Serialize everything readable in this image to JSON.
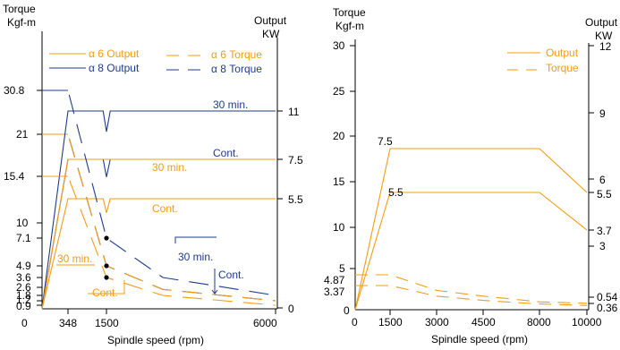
{
  "colors": {
    "orange": "#f39c12",
    "blue": "#1f3b8a",
    "axis": "#000000"
  },
  "chart_data": [
    {
      "type": "line",
      "x_scale": "piecewise",
      "xlabel": "Spindle speed (rpm)",
      "ylabel_left": [
        "Torque",
        "Kgf-m"
      ],
      "ylabel_right": [
        "Output",
        "KW"
      ],
      "x_ticks": [
        "0",
        "348",
        "1500",
        "6000"
      ],
      "y_left_ticks": [
        "30.8",
        "21",
        "15.4",
        "10",
        "7.1",
        "4.9",
        "3.6",
        "2.6",
        "1.8",
        "1.2",
        "0.9"
      ],
      "y_right_ticks": [
        "11",
        "7.5",
        "5.5",
        "0"
      ],
      "legend": {
        "position": "top",
        "entries": [
          {
            "label": "α 6 Output",
            "color": "orange",
            "style": "solid"
          },
          {
            "label": "α 6 Torque",
            "color": "orange",
            "style": "dashed"
          },
          {
            "label": "α 8 Output",
            "color": "blue",
            "style": "solid"
          },
          {
            "label": "α 8 Torque",
            "color": "blue",
            "style": "dashed"
          }
        ]
      },
      "annotations": {
        "blue_output_30min": "30 min.",
        "blue_output_cont": "Cont.",
        "orange_output_30min": "30 min.",
        "orange_output_cont": "Cont.",
        "blue_torque_30min": "30 min.",
        "blue_torque_cont": "Cont.",
        "orange_torque_30min": "30 min.",
        "orange_torque_cont": "Cont."
      },
      "series": [
        {
          "name": "α 8 Output",
          "unit": "KW",
          "duty": "30 min.",
          "color": "blue",
          "style": "solid",
          "points": [
            [
              0,
              0
            ],
            [
              348,
              11
            ],
            [
              1400,
              11
            ],
            [
              1500,
              9.5
            ],
            [
              1600,
              11
            ],
            [
              6000,
              11
            ]
          ]
        },
        {
          "name": "α 8 Output",
          "unit": "KW",
          "duty": "Cont.",
          "color": "blue",
          "style": "solid",
          "points": [
            [
              0,
              0
            ],
            [
              348,
              7.5
            ],
            [
              1400,
              7.5
            ],
            [
              1500,
              6.6
            ],
            [
              1600,
              7.5
            ],
            [
              6000,
              7.5
            ]
          ]
        },
        {
          "name": "α 6 Output",
          "unit": "KW",
          "duty": "30 min.",
          "color": "orange",
          "style": "solid",
          "points": [
            [
              0,
              0
            ],
            [
              348,
              7.5
            ],
            [
              1500,
              7.5
            ],
            [
              6000,
              7.5
            ]
          ]
        },
        {
          "name": "α 6 Output",
          "unit": "KW",
          "duty": "Cont.",
          "color": "orange",
          "style": "solid",
          "points": [
            [
              0,
              0
            ],
            [
              348,
              5.5
            ],
            [
              1400,
              5.5
            ],
            [
              1500,
              4.8
            ],
            [
              1600,
              5.5
            ],
            [
              6000,
              5.5
            ]
          ]
        },
        {
          "name": "α 8 Torque",
          "unit": "Kgf-m",
          "duty": "30 min.",
          "color": "blue",
          "style": "dashed",
          "points": [
            [
              0,
              30.8
            ],
            [
              348,
              30.8
            ],
            [
              1500,
              7.1
            ],
            [
              3000,
              3.6
            ],
            [
              6000,
              1.8
            ]
          ]
        },
        {
          "name": "α 8 Torque",
          "unit": "Kgf-m",
          "duty": "Cont.",
          "color": "blue",
          "style": "dashed",
          "points": [
            [
              0,
              21
            ],
            [
              348,
              21
            ],
            [
              1500,
              4.9
            ],
            [
              3000,
              2.4
            ],
            [
              6000,
              1.2
            ]
          ]
        },
        {
          "name": "α 6 Torque",
          "unit": "Kgf-m",
          "duty": "30 min.",
          "color": "orange",
          "style": "dashed",
          "points": [
            [
              0,
              21
            ],
            [
              348,
              21
            ],
            [
              1500,
              4.9
            ],
            [
              3000,
              2.4
            ],
            [
              6000,
              1.2
            ]
          ]
        },
        {
          "name": "α 6 Torque",
          "unit": "Kgf-m",
          "duty": "Cont.",
          "color": "orange",
          "style": "dashed",
          "points": [
            [
              0,
              15.4
            ],
            [
              348,
              15.4
            ],
            [
              1500,
              3.6
            ],
            [
              3000,
              1.8
            ],
            [
              6000,
              0.9
            ]
          ]
        }
      ],
      "markers": [
        [
          1500,
          7.1
        ],
        [
          1500,
          4.9
        ],
        [
          1500,
          3.6
        ]
      ]
    },
    {
      "type": "line",
      "xlabel": "Spindle speed (rpm)",
      "ylabel_left": [
        "Torque",
        "Kgf-m"
      ],
      "ylabel_right": [
        "Output",
        "KW"
      ],
      "x_ticks": [
        "0",
        "1500",
        "3000",
        "4500",
        "8000",
        "10000"
      ],
      "x_tick_values": [
        0,
        1500,
        3000,
        4500,
        8000,
        10000
      ],
      "xlim": [
        0,
        10000
      ],
      "ylim_left": [
        0,
        30
      ],
      "y_left_ticks": [
        "30",
        "25",
        "20",
        "15",
        "10",
        "5",
        "4.87",
        "3.37",
        "0"
      ],
      "y_right_ticks": [
        "12",
        "9",
        "6",
        "5.5",
        "3.7",
        "3",
        "0.54",
        "0.36"
      ],
      "legend": {
        "position": "top-right",
        "entries": [
          {
            "label": "Output",
            "color": "orange",
            "style": "solid"
          },
          {
            "label": "Torque",
            "color": "orange",
            "style": "dashed"
          }
        ]
      },
      "annotations": {
        "peak_high": "7.5",
        "peak_low": "5.5"
      },
      "series": [
        {
          "name": "Output",
          "unit": "KW",
          "color": "orange",
          "style": "solid",
          "points": [
            [
              0,
              0
            ],
            [
              1500,
              7.5
            ],
            [
              8000,
              7.5
            ],
            [
              10000,
              5.5
            ]
          ]
        },
        {
          "name": "Output",
          "unit": "KW",
          "color": "orange",
          "style": "solid",
          "points": [
            [
              0,
              0
            ],
            [
              1500,
              5.5
            ],
            [
              8000,
              5.5
            ],
            [
              10000,
              3.7
            ]
          ]
        },
        {
          "name": "Torque",
          "unit": "Kgf-m",
          "color": "orange",
          "style": "dashed",
          "points": [
            [
              0,
              4.87
            ],
            [
              1500,
              4.87
            ],
            [
              3000,
              2.7
            ],
            [
              4500,
              1.9
            ],
            [
              8000,
              1.1
            ],
            [
              10000,
              0.9
            ]
          ]
        },
        {
          "name": "Torque",
          "unit": "Kgf-m",
          "color": "orange",
          "style": "dashed",
          "points": [
            [
              0,
              3.37
            ],
            [
              1500,
              3.37
            ],
            [
              3000,
              1.9
            ],
            [
              4500,
              1.3
            ],
            [
              8000,
              0.8
            ],
            [
              10000,
              0.6
            ]
          ]
        }
      ]
    }
  ]
}
